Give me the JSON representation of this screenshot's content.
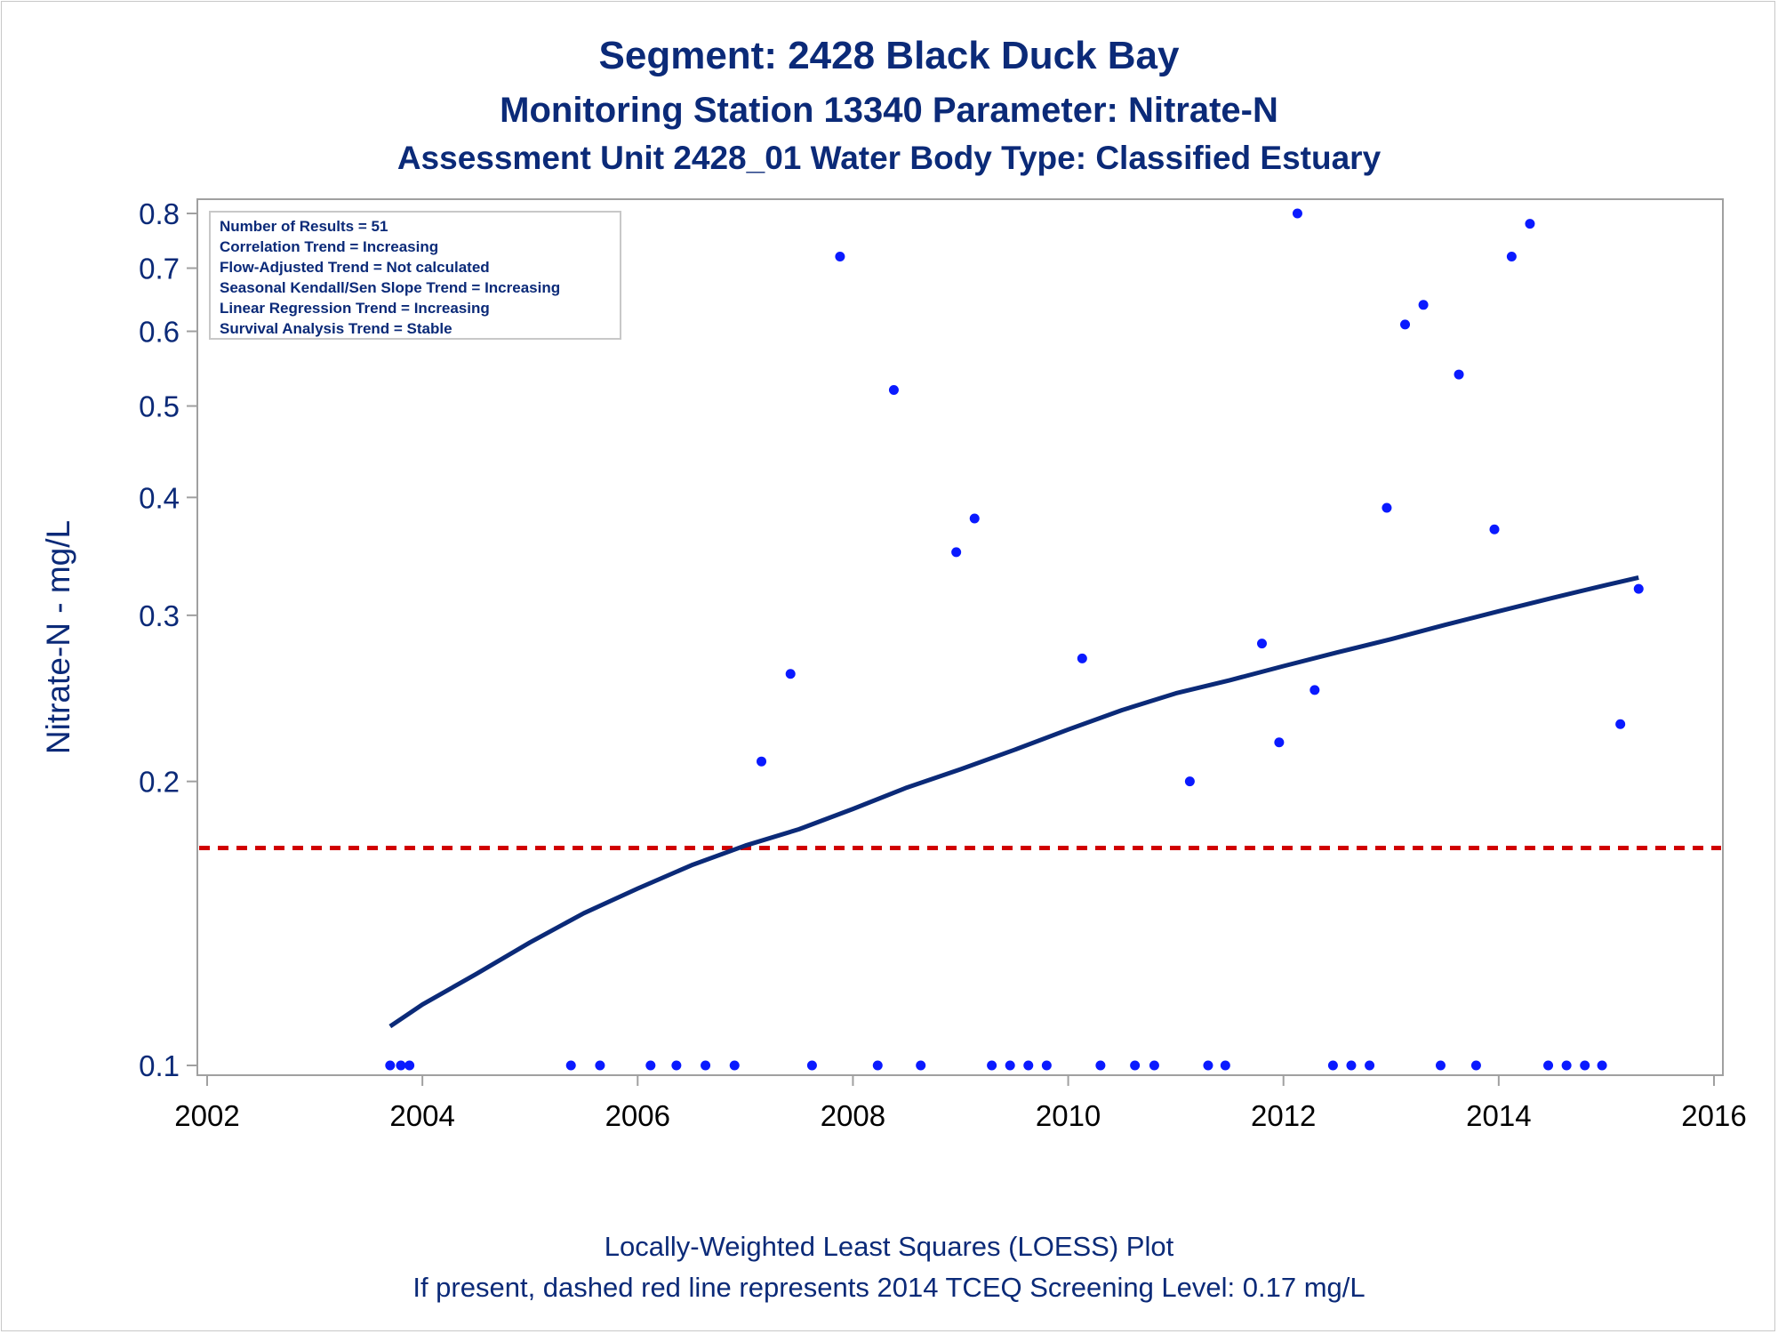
{
  "titles": {
    "line1": "Segment: 2428  Black Duck Bay",
    "line2": "Monitoring Station 13340 Parameter: Nitrate-N",
    "line3": "Assessment Unit 2428_01   Water Body Type: Classified Estuary"
  },
  "footnotes": {
    "line1": "Locally-Weighted Least Squares (LOESS) Plot",
    "line2": "If present, dashed red line represents 2014 TCEQ Screening Level: 0.17 mg/L"
  },
  "colors": {
    "text": "#0b2a78",
    "points": "#0a1aff",
    "loess": "#0b2a78",
    "screening": "#d10000",
    "axis": "#a0a0a0"
  },
  "chart_data": {
    "type": "scatter",
    "ylabel": "Nitrate-N - mg/L",
    "xlabel": "",
    "y_scale": "log",
    "xlim": [
      2002,
      2016
    ],
    "ylim": [
      0.1,
      0.8
    ],
    "x_ticks": [
      2002,
      2004,
      2006,
      2008,
      2010,
      2012,
      2014,
      2016
    ],
    "y_ticks": [
      0.1,
      0.2,
      0.3,
      0.4,
      0.5,
      0.6,
      0.7,
      0.8
    ],
    "y_tick_labels": [
      "0.1",
      "0.2",
      "0.3",
      "0.4",
      "0.5",
      "0.6",
      "0.7",
      "0.8"
    ],
    "grid": false,
    "legend_box": {
      "placement": "top-left",
      "lines": [
        "Number of Results = 51",
        "Correlation Trend = Increasing",
        "Flow-Adjusted Trend = Not calculated",
        "Seasonal Kendall/Sen Slope Trend = Increasing",
        "Linear Regression Trend = Increasing",
        "Survival Analysis Trend = Stable"
      ]
    },
    "screening_level": 0.17,
    "points": [
      {
        "x": 2003.7,
        "y": 0.1
      },
      {
        "x": 2003.8,
        "y": 0.1
      },
      {
        "x": 2003.88,
        "y": 0.1
      },
      {
        "x": 2005.38,
        "y": 0.1
      },
      {
        "x": 2005.65,
        "y": 0.1
      },
      {
        "x": 2006.12,
        "y": 0.1
      },
      {
        "x": 2006.36,
        "y": 0.1
      },
      {
        "x": 2006.63,
        "y": 0.1
      },
      {
        "x": 2006.9,
        "y": 0.1
      },
      {
        "x": 2007.15,
        "y": 0.21
      },
      {
        "x": 2007.42,
        "y": 0.26
      },
      {
        "x": 2007.62,
        "y": 0.1
      },
      {
        "x": 2007.88,
        "y": 0.72
      },
      {
        "x": 2008.23,
        "y": 0.1
      },
      {
        "x": 2008.38,
        "y": 0.52
      },
      {
        "x": 2008.63,
        "y": 0.1
      },
      {
        "x": 2008.96,
        "y": 0.35
      },
      {
        "x": 2009.13,
        "y": 0.38
      },
      {
        "x": 2009.29,
        "y": 0.1
      },
      {
        "x": 2009.46,
        "y": 0.1
      },
      {
        "x": 2009.63,
        "y": 0.1
      },
      {
        "x": 2009.8,
        "y": 0.1
      },
      {
        "x": 2010.13,
        "y": 0.27
      },
      {
        "x": 2010.3,
        "y": 0.1
      },
      {
        "x": 2010.62,
        "y": 0.1
      },
      {
        "x": 2010.8,
        "y": 0.1
      },
      {
        "x": 2011.13,
        "y": 0.2
      },
      {
        "x": 2011.3,
        "y": 0.1
      },
      {
        "x": 2011.46,
        "y": 0.1
      },
      {
        "x": 2011.8,
        "y": 0.28
      },
      {
        "x": 2011.96,
        "y": 0.22
      },
      {
        "x": 2012.13,
        "y": 0.8
      },
      {
        "x": 2012.29,
        "y": 0.25
      },
      {
        "x": 2012.46,
        "y": 0.1
      },
      {
        "x": 2012.63,
        "y": 0.1
      },
      {
        "x": 2012.8,
        "y": 0.1
      },
      {
        "x": 2012.96,
        "y": 0.39
      },
      {
        "x": 2013.13,
        "y": 0.61
      },
      {
        "x": 2013.3,
        "y": 0.64
      },
      {
        "x": 2013.46,
        "y": 0.1
      },
      {
        "x": 2013.63,
        "y": 0.54
      },
      {
        "x": 2013.79,
        "y": 0.1
      },
      {
        "x": 2013.96,
        "y": 0.37
      },
      {
        "x": 2014.12,
        "y": 0.72
      },
      {
        "x": 2014.29,
        "y": 0.78
      },
      {
        "x": 2014.46,
        "y": 0.1
      },
      {
        "x": 2014.63,
        "y": 0.1
      },
      {
        "x": 2014.8,
        "y": 0.1
      },
      {
        "x": 2014.96,
        "y": 0.1
      },
      {
        "x": 2015.13,
        "y": 0.23
      },
      {
        "x": 2015.3,
        "y": 0.32
      }
    ],
    "loess_curve": [
      {
        "x": 2003.7,
        "y": 0.11
      },
      {
        "x": 2004.0,
        "y": 0.116
      },
      {
        "x": 2004.5,
        "y": 0.125
      },
      {
        "x": 2005.0,
        "y": 0.135
      },
      {
        "x": 2005.5,
        "y": 0.145
      },
      {
        "x": 2006.0,
        "y": 0.154
      },
      {
        "x": 2006.5,
        "y": 0.163
      },
      {
        "x": 2007.0,
        "y": 0.171
      },
      {
        "x": 2007.5,
        "y": 0.178
      },
      {
        "x": 2008.0,
        "y": 0.187
      },
      {
        "x": 2008.5,
        "y": 0.197
      },
      {
        "x": 2009.0,
        "y": 0.206
      },
      {
        "x": 2009.5,
        "y": 0.216
      },
      {
        "x": 2010.0,
        "y": 0.227
      },
      {
        "x": 2010.5,
        "y": 0.238
      },
      {
        "x": 2011.0,
        "y": 0.248
      },
      {
        "x": 2011.5,
        "y": 0.256
      },
      {
        "x": 2012.0,
        "y": 0.265
      },
      {
        "x": 2012.5,
        "y": 0.274
      },
      {
        "x": 2013.0,
        "y": 0.283
      },
      {
        "x": 2013.5,
        "y": 0.293
      },
      {
        "x": 2014.0,
        "y": 0.303
      },
      {
        "x": 2014.5,
        "y": 0.313
      },
      {
        "x": 2015.0,
        "y": 0.323
      },
      {
        "x": 2015.3,
        "y": 0.329
      }
    ]
  }
}
